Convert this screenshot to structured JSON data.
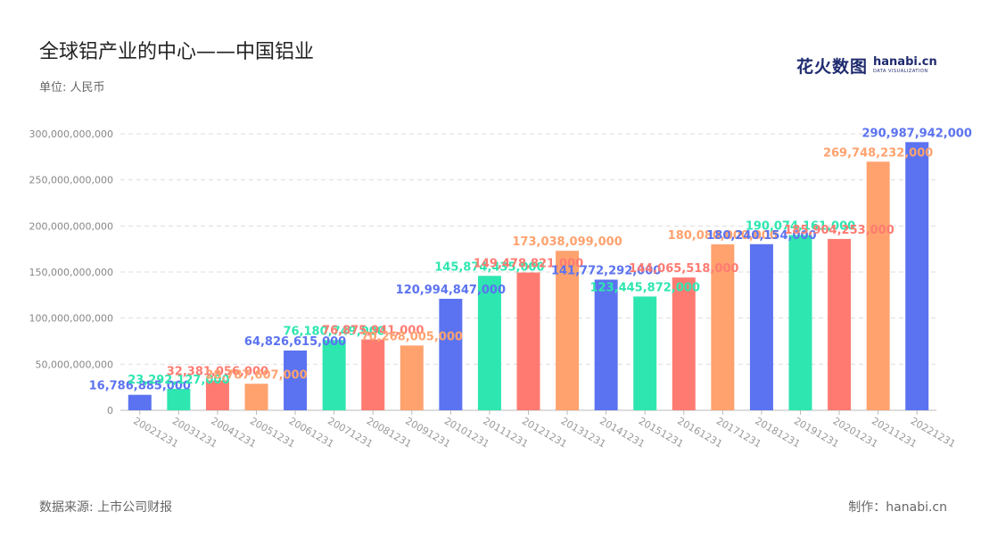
{
  "header": {
    "title": "全球铝产业的中心——中国铝业",
    "unit": "单位: 人民币"
  },
  "footer": {
    "source": "数据来源: 上市公司财报",
    "credit": "制作：hanabi.cn"
  },
  "logo": {
    "cn": "花火数图",
    "en": "hanabi.cn",
    "tagline": "DATA VISUALIZATION"
  },
  "chart_data": {
    "type": "bar",
    "categories": [
      "20021231",
      "20031231",
      "20041231",
      "20051231",
      "20061231",
      "20071231",
      "20081231",
      "20091231",
      "20101231",
      "20111231",
      "20121231",
      "20131231",
      "20141231",
      "20151231",
      "20161231",
      "20171231",
      "20181231",
      "20191231",
      "20201231",
      "20211231",
      "20221231"
    ],
    "values": [
      16786885000,
      23292127000,
      32381056000,
      28787607000,
      64826615000,
      76180749000,
      76875941000,
      70268005000,
      120994847000,
      145874435000,
      149478821000,
      173038099000,
      141772292000,
      123445872000,
      144065518000,
      180080000000,
      180240154000,
      190074161000,
      185904253000,
      269748232000,
      290987942000
    ],
    "value_labels": [
      "16,786,885,000",
      "23,292,127,000",
      "32,381,056,000",
      "28,787,607,000",
      "64,826,615,000",
      "76,180,749,000",
      "76,875,941,000",
      "70,268,005,000",
      "120,994,847,000",
      "145,874,435,000",
      "149,478,821,000",
      "173,038,099,000",
      "141,772,292,000",
      "123,445,872,000",
      "144,065,518,000",
      "180,080,000,000",
      "180,240,154,000",
      "190,074,161,000",
      "185,904,253,000",
      "269,748,232,000",
      "290,987,942,000"
    ],
    "colors": [
      "#5b73f0",
      "#2ee6b0",
      "#ff7b72",
      "#ffa26e"
    ],
    "ylim": [
      0,
      300000000000
    ],
    "yticks": [
      0,
      50000000000,
      100000000000,
      150000000000,
      200000000000,
      250000000000,
      300000000000
    ],
    "ytick_labels": [
      "0",
      "50,000,000,000",
      "100,000,000,000",
      "150,000,000,000",
      "200,000,000,000",
      "250,000,000,000",
      "300,000,000,000"
    ],
    "grid": true,
    "xlabel": "",
    "ylabel": ""
  }
}
